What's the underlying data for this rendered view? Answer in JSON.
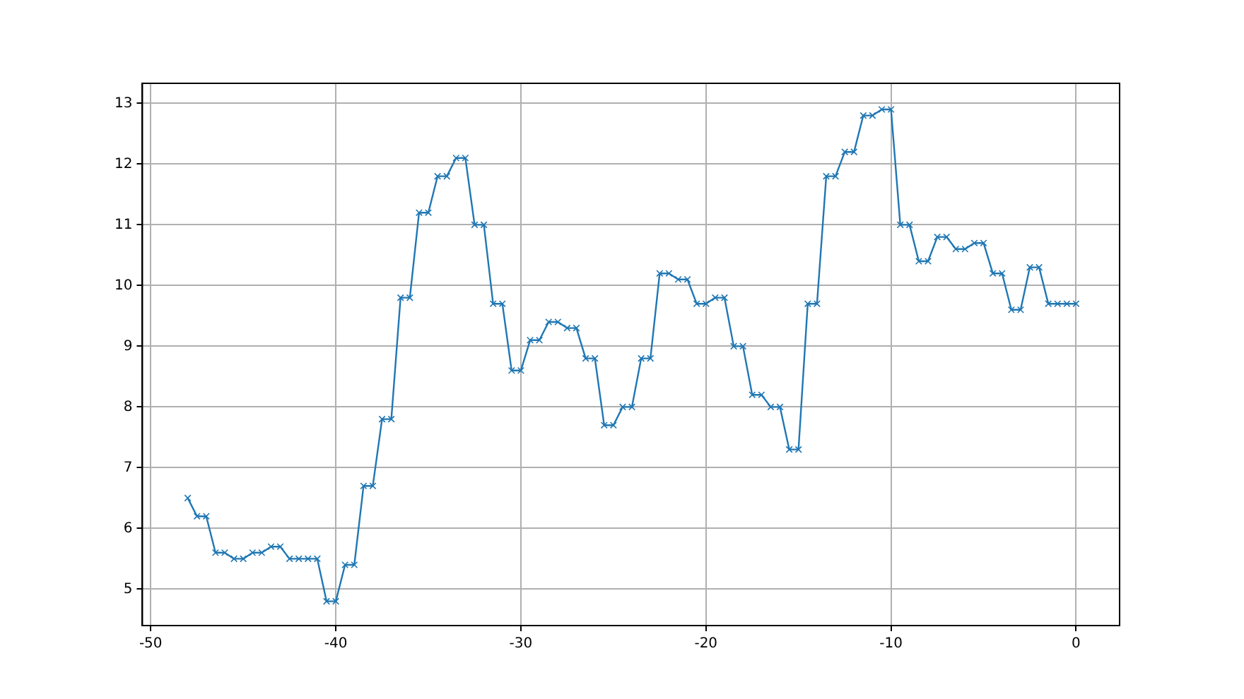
{
  "chart_data": {
    "type": "line",
    "marker": "cross",
    "grid": true,
    "xlim": [
      -50.45,
      2.35
    ],
    "ylim": [
      4.4,
      13.33
    ],
    "xticks": [
      -50,
      -40,
      -30,
      -20,
      -10,
      0
    ],
    "yticks": [
      5,
      6,
      7,
      8,
      9,
      10,
      11,
      12,
      13
    ],
    "x": [
      -48,
      -47.5,
      -47,
      -46.5,
      -46,
      -45.5,
      -45,
      -44.5,
      -44,
      -43.5,
      -43,
      -42.5,
      -42,
      -41.5,
      -41,
      -40.5,
      -40,
      -39.5,
      -39,
      -38.5,
      -38,
      -37.5,
      -37,
      -36.5,
      -36,
      -35.5,
      -35,
      -34.5,
      -34,
      -33.5,
      -33,
      -32.5,
      -32,
      -31.5,
      -31,
      -30.5,
      -30,
      -29.5,
      -29,
      -28.5,
      -28,
      -27.5,
      -27,
      -26.5,
      -26,
      -25.5,
      -25,
      -24.5,
      -24,
      -23.5,
      -23,
      -22.5,
      -22,
      -21.5,
      -21,
      -20.5,
      -20,
      -19.5,
      -19,
      -18.5,
      -18,
      -17.5,
      -17,
      -16.5,
      -16,
      -15.5,
      -15,
      -14.5,
      -14,
      -13.5,
      -13,
      -12.5,
      -12,
      -11.5,
      -11,
      -10.5,
      -10,
      -9.5,
      -9,
      -8.5,
      -8,
      -7.5,
      -7,
      -6.5,
      -6,
      -5.5,
      -5,
      -4.5,
      -4,
      -3.5,
      -3,
      -2.5,
      -2,
      -1.5,
      -1,
      -0.5,
      0
    ],
    "series": [
      {
        "color": "#1f77b4",
        "values": [
          6.5,
          6.2,
          6.2,
          5.6,
          5.6,
          5.5,
          5.5,
          5.6,
          5.6,
          5.7,
          5.7,
          5.5,
          5.5,
          5.5,
          5.5,
          4.8,
          4.8,
          5.4,
          5.4,
          6.7,
          6.7,
          7.8,
          7.8,
          9.8,
          9.8,
          11.2,
          11.2,
          11.8,
          11.8,
          12.1,
          12.1,
          11.0,
          11.0,
          9.7,
          9.7,
          8.6,
          8.6,
          9.1,
          9.1,
          9.4,
          9.4,
          9.3,
          9.3,
          8.8,
          8.8,
          7.7,
          7.7,
          8.0,
          8.0,
          8.8,
          8.8,
          10.2,
          10.2,
          10.1,
          10.1,
          9.7,
          9.7,
          9.8,
          9.8,
          9.0,
          9.0,
          8.2,
          8.2,
          8.0,
          8.0,
          7.3,
          7.3,
          9.7,
          9.7,
          11.8,
          11.8,
          12.2,
          12.2,
          12.8,
          12.8,
          12.9,
          12.9,
          11.0,
          11.0,
          10.4,
          10.4,
          10.8,
          10.8,
          10.6,
          10.6,
          10.7,
          10.7,
          10.2,
          10.2,
          9.6,
          9.6,
          10.3,
          10.3,
          9.7,
          9.7,
          9.7,
          9.7
        ]
      }
    ]
  }
}
